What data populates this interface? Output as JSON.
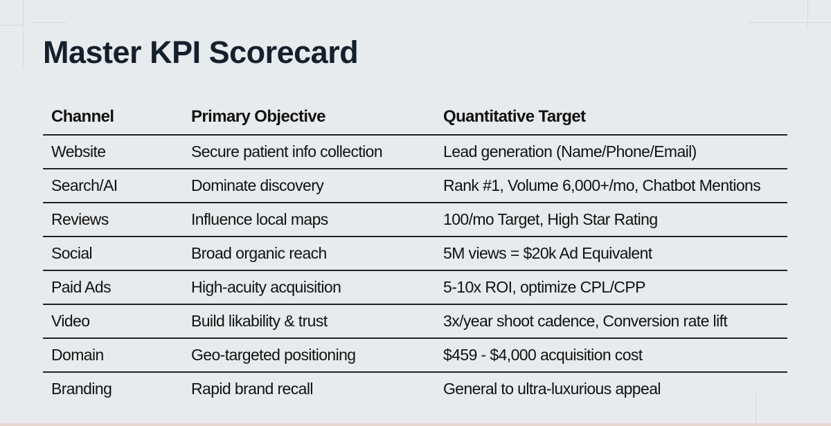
{
  "title": "Master KPI Scorecard",
  "table": {
    "headers": [
      "Channel",
      "Primary Objective",
      "Quantitative Target"
    ],
    "rows": [
      [
        "Website",
        "Secure patient info collection",
        "Lead generation (Name/Phone/Email)"
      ],
      [
        "Search/AI",
        "Dominate discovery",
        "Rank #1, Volume 6,000+/mo, Chatbot Mentions"
      ],
      [
        "Reviews",
        "Influence local maps",
        "100/mo Target, High Star Rating"
      ],
      [
        "Social",
        "Broad organic reach",
        "5M views = $20k Ad Equivalent"
      ],
      [
        "Paid Ads",
        "High-acuity acquisition",
        "5-10x ROI, optimize CPL/CPP"
      ],
      [
        "Video",
        "Build likability & trust",
        "3x/year shoot cadence, Conversion rate lift"
      ],
      [
        "Domain",
        "Geo-targeted positioning",
        "$459 - $4,000 acquisition cost"
      ],
      [
        "Branding",
        "Rapid brand recall",
        "General to ultra-luxurious appeal"
      ]
    ]
  }
}
